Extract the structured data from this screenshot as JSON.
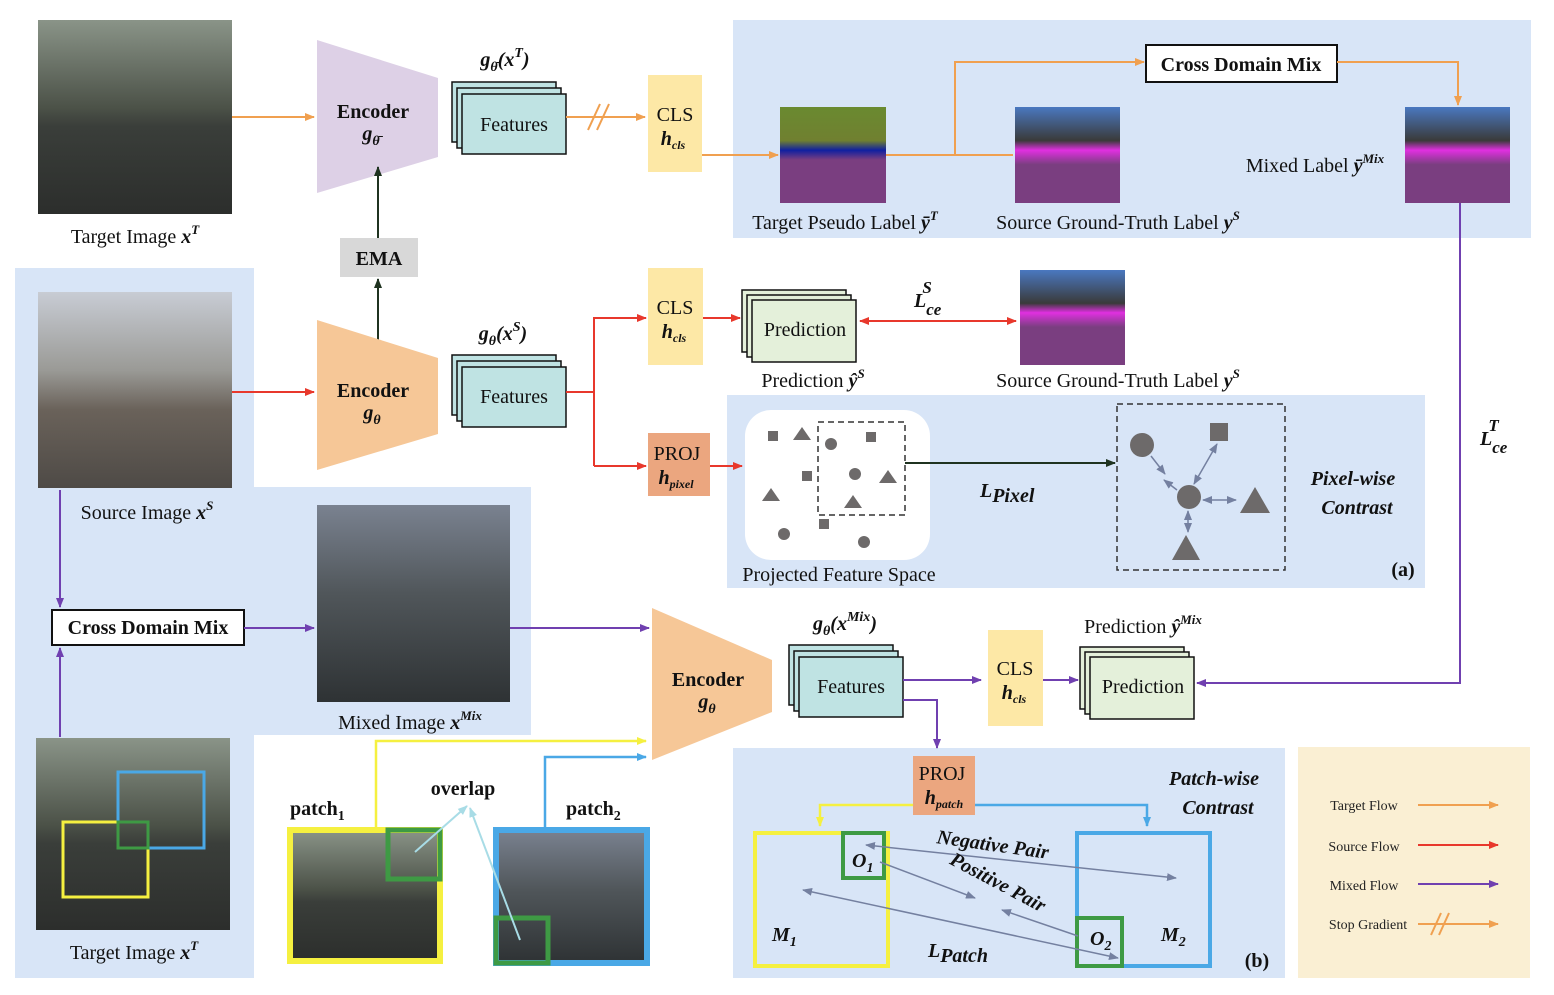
{
  "colors": {
    "target_flow": "#f0a050",
    "source_flow": "#e8382c",
    "mixed_flow": "#7040b0",
    "stop_gradient": "#f0a050",
    "panel": "#d8e5f7",
    "legend_bg": "#faefd3",
    "features": "#bfe3e3",
    "cls": "#fde8a6",
    "proj": "#eba67f",
    "prediction": "#e4f0da",
    "teacher_encoder": "#ddd0e6",
    "student_encoder": "#f6c797",
    "patch1": "#f5f040",
    "patch2": "#4aa8e6",
    "overlap": "#3e9a44"
  },
  "target": {
    "image_label": "Target Image ",
    "image_var": "x",
    "image_sup": "T",
    "encoder": "Encoder",
    "enc_g": "g",
    "enc_sub": "θ̄",
    "feat_title_g": "g",
    "feat_title_sub": "θ̄",
    "feat_title_x": "(x",
    "feat_title_sup": "T",
    "feat_title_close": ")",
    "features": "Features",
    "cls": "CLS",
    "cls_h": "h",
    "cls_sub": "cls"
  },
  "ema": "EMA",
  "mix_panel": {
    "cross_domain_mix": "Cross Domain Mix",
    "pseudo_label": "Target Pseudo Label ",
    "pseudo_var": "ȳ",
    "pseudo_sup": "T",
    "gt_label": "Source Ground-Truth Label ",
    "gt_var": "y",
    "gt_sup": "S",
    "mixed_label": "Mixed Label ",
    "mixed_var": "ȳ",
    "mixed_sup": "Mix"
  },
  "loss_ce_target": {
    "L": "L",
    "sub": "ce",
    "sup": "T"
  },
  "source": {
    "image_label": "Source Image ",
    "image_var": "x",
    "image_sup": "S",
    "encoder": "Encoder",
    "enc_g": "g",
    "enc_sub": "θ",
    "feat_title_g": "g",
    "feat_title_sub": "θ",
    "feat_title_x": "(x",
    "feat_title_sup": "S",
    "feat_title_close": ")",
    "features": "Features",
    "cls": "CLS",
    "cls_h": "h",
    "cls_sub": "cls",
    "prediction": "Prediction",
    "pred_label": "Prediction ",
    "pred_var": "ŷ",
    "pred_sup": "S",
    "gt_label": "Source Ground-Truth Label ",
    "gt_var": "y",
    "gt_sup": "S",
    "loss": {
      "L": "L",
      "sub": "ce",
      "sup": "S"
    },
    "proj": "PROJ",
    "proj_h": "h",
    "proj_sub": "pixel"
  },
  "pixel_panel": {
    "projected_space": "Projected Feature Space",
    "loss_L": "L",
    "loss_sub": "Pixel",
    "title_1": "Pixel-wise",
    "title_2": "Contrast",
    "tag": "(a)"
  },
  "mixed": {
    "cross_domain_mix": "Cross Domain Mix",
    "image_label": "Mixed Image ",
    "image_var": "x",
    "image_sup": "Mix",
    "target_label": "Target Image ",
    "target_var": "x",
    "target_sup": "T",
    "encoder": "Encoder",
    "enc_g": "g",
    "enc_sub": "θ",
    "feat_title_g": "g",
    "feat_title_sub": "θ",
    "feat_title_x": "(x",
    "feat_title_sup": "Mix",
    "feat_title_close": ")",
    "features": "Features",
    "cls": "CLS",
    "cls_h": "h",
    "cls_sub": "cls",
    "prediction": "Prediction",
    "pred_label": "Prediction ",
    "pred_var": "ŷ",
    "pred_sup": "Mix"
  },
  "patches": {
    "patch1": "patch",
    "patch1_sub": "1",
    "patch2": "patch",
    "patch2_sub": "2",
    "overlap": "overlap"
  },
  "patch_panel": {
    "proj": "PROJ",
    "proj_h": "h",
    "proj_sub": "patch",
    "title_1": "Patch-wise",
    "title_2": "Contrast",
    "negative": "Negative Pair",
    "positive": "Positive Pair",
    "m1": "M",
    "m1_sub": "1",
    "m2": "M",
    "m2_sub": "2",
    "o1": "O",
    "o1_sub": "1",
    "o2": "O",
    "o2_sub": "2",
    "loss_L": "L",
    "loss_sub": "Patch",
    "tag": "(b)"
  },
  "legend": {
    "items": [
      {
        "label": "Target Flow"
      },
      {
        "label": "Source Flow"
      },
      {
        "label": "Mixed Flow"
      },
      {
        "label": "Stop Gradient"
      }
    ]
  }
}
